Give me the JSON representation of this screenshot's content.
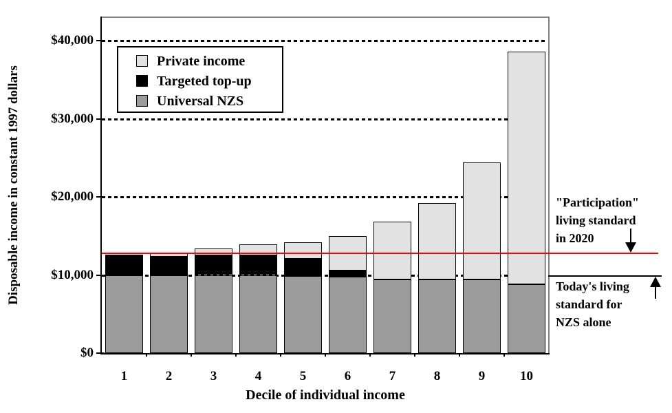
{
  "chart_data": {
    "type": "bar",
    "stacked": true,
    "title": "",
    "xlabel": "Decile of individual income",
    "ylabel": "Disposable income in constant 1997 dollars",
    "categories": [
      "1",
      "2",
      "3",
      "4",
      "5",
      "6",
      "7",
      "8",
      "9",
      "10"
    ],
    "series": [
      {
        "name": "Universal NZS",
        "color": "#9c9c9c",
        "values": [
          10000,
          10000,
          10000,
          10000,
          9900,
          9800,
          9400,
          9400,
          9400,
          8800
        ]
      },
      {
        "name": "Targeted top-up",
        "color": "#000000",
        "values": [
          2600,
          2300,
          2500,
          2500,
          2200,
          800,
          0,
          0,
          0,
          0
        ]
      },
      {
        "name": "Private income",
        "color": "#e2e2e2",
        "values": [
          0,
          600,
          900,
          1400,
          2100,
          4400,
          7400,
          9800,
          15000,
          29800
        ]
      }
    ],
    "totals": [
      12600,
      12900,
      13400,
      13900,
      14200,
      15000,
      16800,
      19200,
      24400,
      38600
    ],
    "ylim": [
      0,
      43000
    ],
    "yticks": [
      {
        "value": 0,
        "label": "$0"
      },
      {
        "value": 10000,
        "label": "$10,000"
      },
      {
        "value": 20000,
        "label": "$20,000"
      },
      {
        "value": 30000,
        "label": "$30,000"
      },
      {
        "value": 40000,
        "label": "$40,000"
      }
    ],
    "grid": {
      "horizontal": true,
      "style": "dotted"
    },
    "legend_position": "top-left-inside",
    "reference_lines": [
      {
        "value": 12800,
        "color": "#ff0000",
        "label": "\"Participation\" living standard in 2020"
      },
      {
        "value": 9900,
        "color": "#000000",
        "label": "Today's living standard for NZS alone"
      }
    ]
  },
  "legend": {
    "items": [
      {
        "label": "Private income",
        "color": "#e2e2e2"
      },
      {
        "label": "Targeted top-up",
        "color": "#000000"
      },
      {
        "label": "Universal NZS",
        "color": "#9c9c9c"
      }
    ]
  },
  "annotations": {
    "participation": {
      "line1": "\"Participation\"",
      "line2": "living standard",
      "line3": "in 2020"
    },
    "today": {
      "line1": "Today's living",
      "line2": "standard for",
      "line3": "NZS alone"
    }
  }
}
